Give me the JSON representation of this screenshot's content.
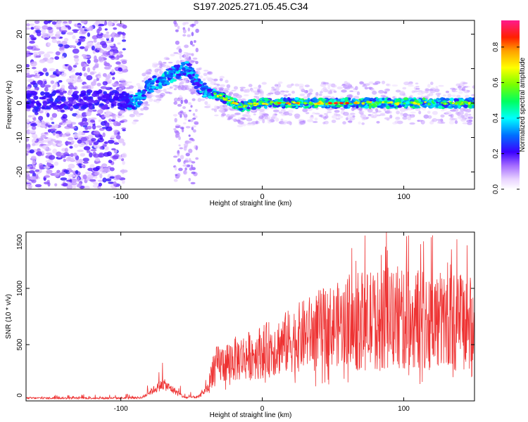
{
  "title": "S197.2025.271.05.45.C34",
  "chart_data": [
    {
      "type": "heatmap",
      "name": "spectrogram",
      "xlabel": "Height of straight line (km)",
      "ylabel": "Frequency (Hz)",
      "xlim": [
        -167,
        150
      ],
      "ylim": [
        -25,
        24
      ],
      "xticks": [
        -100,
        0,
        100
      ],
      "yticks": [
        -20,
        -10,
        0,
        10,
        20
      ],
      "colorbar": {
        "label": "Normalized spectral amplitude",
        "range": [
          0,
          0.95
        ],
        "ticks": [
          0.0,
          0.2,
          0.4,
          0.6,
          0.8
        ]
      },
      "ridge": [
        {
          "x": -100,
          "y": 1
        },
        {
          "x": -90,
          "y": 0
        },
        {
          "x": -80,
          "y": 5
        },
        {
          "x": -70,
          "y": 7
        },
        {
          "x": -60,
          "y": 9
        },
        {
          "x": -52,
          "y": 10
        },
        {
          "x": -45,
          "y": 5
        },
        {
          "x": -38,
          "y": 3
        },
        {
          "x": -30,
          "y": 2
        },
        {
          "x": -15,
          "y": -1
        },
        {
          "x": 0,
          "y": 0
        },
        {
          "x": 25,
          "y": 0
        },
        {
          "x": 50,
          "y": 0
        },
        {
          "x": 75,
          "y": 0
        },
        {
          "x": 100,
          "y": 0
        },
        {
          "x": 125,
          "y": 0
        },
        {
          "x": 150,
          "y": 0
        }
      ]
    },
    {
      "type": "line",
      "name": "snr",
      "xlabel": "Height of straight line (km)",
      "ylabel": "SNR (10 * v/v)",
      "xlim": [
        -167,
        150
      ],
      "ylim": [
        0,
        1500
      ],
      "xticks": [
        -100,
        0,
        100
      ],
      "yticks": [
        0,
        500,
        1000,
        1500
      ],
      "series_color": "#ee3333",
      "envelope": [
        {
          "x": -167,
          "y": 25
        },
        {
          "x": -100,
          "y": 25
        },
        {
          "x": -85,
          "y": 30
        },
        {
          "x": -78,
          "y": 90
        },
        {
          "x": -70,
          "y": 150
        },
        {
          "x": -62,
          "y": 90
        },
        {
          "x": -55,
          "y": 30
        },
        {
          "x": -45,
          "y": 35
        },
        {
          "x": -38,
          "y": 120
        },
        {
          "x": -35,
          "y": 300
        },
        {
          "x": -25,
          "y": 350
        },
        {
          "x": -10,
          "y": 400
        },
        {
          "x": 10,
          "y": 480
        },
        {
          "x": 25,
          "y": 560
        },
        {
          "x": 40,
          "y": 640
        },
        {
          "x": 60,
          "y": 700
        },
        {
          "x": 80,
          "y": 720
        },
        {
          "x": 100,
          "y": 720
        },
        {
          "x": 120,
          "y": 720
        },
        {
          "x": 140,
          "y": 700
        },
        {
          "x": 150,
          "y": 700
        }
      ]
    }
  ]
}
